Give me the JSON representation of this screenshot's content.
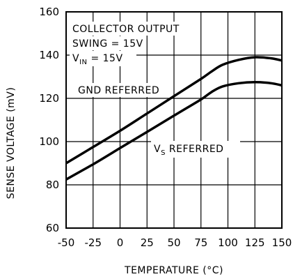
{
  "chart_data": {
    "type": "line",
    "xlabel": "TEMPERATURE (°C)",
    "ylabel": "SENSE VOLTAGE (mV)",
    "xlim": [
      -50,
      150
    ],
    "ylim": [
      60,
      160
    ],
    "x_ticks": [
      -50,
      -25,
      0,
      25,
      50,
      75,
      100,
      125,
      150
    ],
    "y_ticks": [
      60,
      80,
      100,
      120,
      140,
      160
    ],
    "grid": true,
    "annotations": {
      "line1": "COLLECTOR OUTPUT",
      "line2": "SWING = 15V",
      "vin_main": "V",
      "vin_sub": "IN",
      "vin_rest": " = 15V",
      "gnd_label": "GND REFERRED",
      "vs_main": "V",
      "vs_sub": "S",
      "vs_rest": " REFERRED"
    },
    "series": [
      {
        "name": "GND REFERRED",
        "x": [
          -50,
          -25,
          0,
          25,
          50,
          75,
          85,
          95,
          110,
          125,
          140,
          150
        ],
        "y": [
          90,
          97.5,
          105,
          113,
          121,
          129,
          132.5,
          135.5,
          137.8,
          139,
          138.5,
          137.5
        ]
      },
      {
        "name": "VS REFERRED",
        "x": [
          -50,
          -25,
          0,
          25,
          50,
          75,
          85,
          95,
          110,
          125,
          140,
          150
        ],
        "y": [
          82.5,
          89.5,
          97,
          104.5,
          112,
          119.5,
          123,
          125.5,
          127,
          127.5,
          127,
          126
        ]
      }
    ]
  }
}
